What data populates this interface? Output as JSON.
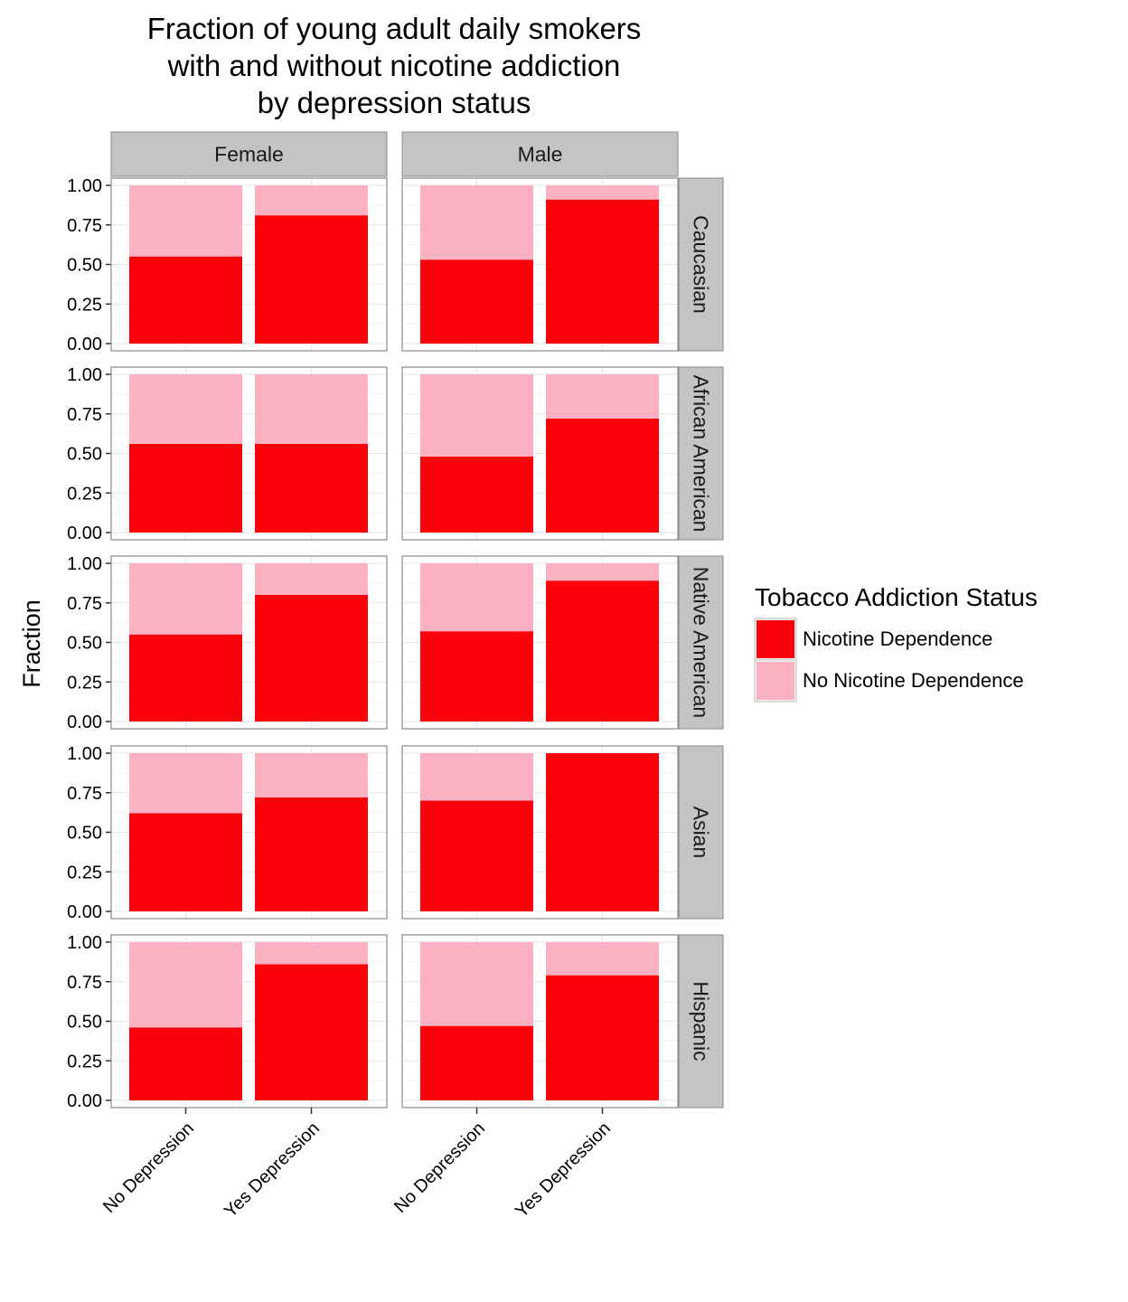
{
  "chart_data": {
    "type": "bar",
    "stacked": true,
    "title": [
      "Fraction of young adult daily smokers",
      "with and without nicotine addiction",
      "by depression status"
    ],
    "ylabel": "Fraction",
    "xlabel": "",
    "ylim": [
      0,
      1
    ],
    "y_ticks": [
      "0.00",
      "0.25",
      "0.50",
      "0.75",
      "1.00"
    ],
    "categories": [
      "No Depression",
      "Yes Depression"
    ],
    "facet_columns": [
      "Female",
      "Male"
    ],
    "facet_rows": [
      "Caucasian",
      "African American",
      "Native American",
      "Asian",
      "Hispanic"
    ],
    "legend": {
      "title": "Tobacco Addiction Status",
      "position": "right",
      "entries": [
        {
          "name": "Nicotine Dependence",
          "color": "#fb020b"
        },
        {
          "name": "No Nicotine Dependence",
          "color": "#fcb1c3"
        }
      ]
    },
    "nicotine_dependence_fraction": {
      "Caucasian": {
        "Female": [
          0.55,
          0.81
        ],
        "Male": [
          0.53,
          0.91
        ]
      },
      "African American": {
        "Female": [
          0.56,
          0.56
        ],
        "Male": [
          0.48,
          0.72
        ]
      },
      "Native American": {
        "Female": [
          0.55,
          0.8
        ],
        "Male": [
          0.57,
          0.89
        ]
      },
      "Asian": {
        "Female": [
          0.62,
          0.72
        ],
        "Male": [
          0.7,
          1.0
        ]
      },
      "Hispanic": {
        "Female": [
          0.46,
          0.86
        ],
        "Male": [
          0.47,
          0.79
        ]
      }
    },
    "grid": true,
    "panel_background": "#ffffff",
    "strip_background": "#c4c4c4"
  }
}
